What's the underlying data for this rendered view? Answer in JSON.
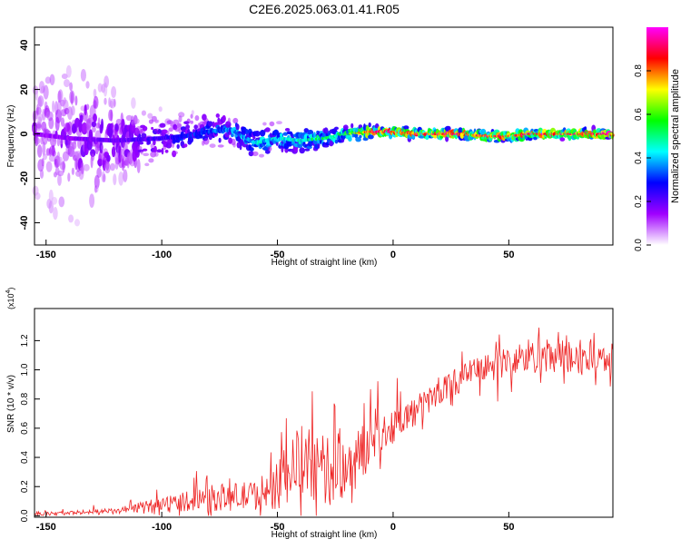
{
  "figure_title": "C2E6.2025.063.01.41.R05",
  "chart_data": [
    {
      "type": "heatmap",
      "xlabel": "Height of straight line (km)",
      "ylabel": "Frequency (Hz)",
      "xlim": [
        -155,
        95
      ],
      "ylim": [
        -50,
        48
      ],
      "x_ticks": [
        -150,
        -100,
        -50,
        0,
        50
      ],
      "y_ticks": [
        -40,
        -20,
        0,
        20,
        40
      ],
      "colorbar": {
        "label": "Normalized spectral amplitude",
        "range": [
          0,
          1
        ],
        "ticks": [
          "0.0",
          "0.2",
          "0.4",
          "0.6",
          "0.8"
        ],
        "colors": [
          "#ffffff",
          "#a000ff",
          "#0000ff",
          "#00ffff",
          "#00ff00",
          "#ffff00",
          "#ff0000",
          "#ff00ff"
        ]
      },
      "center_frequency_profile": [
        [
          -155,
          0
        ],
        [
          -140,
          -2
        ],
        [
          -120,
          -3
        ],
        [
          -100,
          -2
        ],
        [
          -90,
          -1
        ],
        [
          -80,
          1
        ],
        [
          -70,
          2
        ],
        [
          -60,
          -4
        ],
        [
          -50,
          -2
        ],
        [
          -40,
          -3
        ],
        [
          -30,
          -2
        ],
        [
          -20,
          0
        ],
        [
          -10,
          1
        ],
        [
          0,
          1
        ],
        [
          10,
          0
        ],
        [
          20,
          0
        ],
        [
          30,
          0
        ],
        [
          40,
          -1
        ],
        [
          50,
          -1
        ],
        [
          60,
          0
        ],
        [
          70,
          0
        ],
        [
          80,
          0
        ],
        [
          95,
          0
        ]
      ],
      "spread_profile_hz": [
        [
          -155,
          45
        ],
        [
          -130,
          45
        ],
        [
          -120,
          25
        ],
        [
          -100,
          15
        ],
        [
          -80,
          10
        ],
        [
          -60,
          9
        ],
        [
          -40,
          8
        ],
        [
          -20,
          5
        ],
        [
          0,
          3
        ],
        [
          40,
          3
        ],
        [
          95,
          3
        ]
      ],
      "peak_amplitude_profile": [
        [
          -155,
          0.15
        ],
        [
          -100,
          0.25
        ],
        [
          -80,
          0.35
        ],
        [
          -60,
          0.45
        ],
        [
          -40,
          0.5
        ],
        [
          -20,
          0.6
        ],
        [
          -10,
          0.95
        ],
        [
          0,
          0.95
        ],
        [
          95,
          0.95
        ]
      ]
    },
    {
      "type": "line",
      "xlabel": "Height of straight line (km)",
      "ylabel": "SNR (10 * v/v)",
      "y_multiplier": "(x10",
      "y_multiplier_exp": "4",
      "y_multiplier_close": ")",
      "xlim": [
        -155,
        95
      ],
      "ylim": [
        -0.01,
        1.42
      ],
      "x_ticks": [
        -150,
        -100,
        -50,
        0,
        50
      ],
      "y_ticks": [
        "0.0",
        "0.2",
        "0.4",
        "0.6",
        "0.8",
        "1.0",
        "1.2"
      ],
      "series": [
        {
          "color": "#ee2222",
          "x": [
            -155,
            -140,
            -120,
            -100,
            -80,
            -60,
            -50,
            -45,
            -40,
            -30,
            -20,
            -15,
            -10,
            0,
            10,
            20,
            30,
            40,
            50,
            60,
            70,
            80,
            95
          ],
          "y": [
            0.01,
            0.02,
            0.03,
            0.08,
            0.12,
            0.14,
            0.2,
            0.3,
            0.38,
            0.3,
            0.35,
            0.4,
            0.5,
            0.62,
            0.72,
            0.85,
            0.95,
            1.02,
            1.05,
            1.1,
            1.07,
            1.09,
            1.08
          ]
        }
      ],
      "noise_amplitude_profile": [
        [
          -155,
          0.01
        ],
        [
          -120,
          0.02
        ],
        [
          -100,
          0.05
        ],
        [
          -80,
          0.09
        ],
        [
          -60,
          0.1
        ],
        [
          -50,
          0.16
        ],
        [
          -40,
          0.26
        ],
        [
          -20,
          0.24
        ],
        [
          -10,
          0.17
        ],
        [
          0,
          0.12
        ],
        [
          20,
          0.09
        ],
        [
          40,
          0.1
        ],
        [
          60,
          0.13
        ],
        [
          80,
          0.14
        ],
        [
          95,
          0.1
        ]
      ]
    }
  ]
}
